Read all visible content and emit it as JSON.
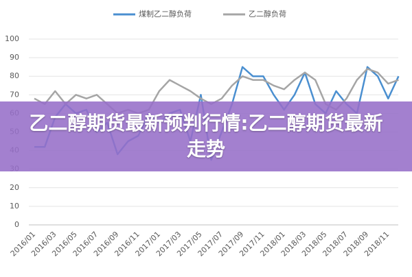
{
  "chart_data": {
    "type": "line",
    "categories": [
      "2016/01",
      null,
      "2016/03",
      null,
      "2016/05",
      null,
      "2016/07",
      null,
      "2016/09",
      null,
      "2016/11",
      null,
      "2017/01",
      null,
      "2017/03",
      null,
      "2017/05",
      null,
      "2017/07",
      null,
      "2017/09",
      null,
      "2017/11",
      null,
      "2018/01",
      null,
      "2018/03",
      null,
      "2018/05",
      null,
      "2018/07",
      null,
      "2018/09",
      null,
      "2018/11",
      null
    ],
    "series": [
      {
        "name": "煤制乙二醇负荷",
        "color": "#4a8fd0",
        "values": [
          42,
          42,
          58,
          65,
          60,
          62,
          50,
          55,
          38,
          45,
          48,
          60,
          55,
          60,
          62,
          45,
          70,
          35,
          50,
          65,
          85,
          80,
          80,
          70,
          62,
          70,
          82,
          65,
          60,
          72,
          65,
          60,
          85,
          80,
          68,
          80
        ]
      },
      {
        "name": "乙二醇负荷",
        "color": "#a5a5a5",
        "values": [
          68,
          65,
          72,
          65,
          70,
          68,
          70,
          65,
          60,
          62,
          60,
          62,
          72,
          78,
          75,
          72,
          68,
          65,
          68,
          75,
          80,
          78,
          78,
          75,
          73,
          78,
          82,
          78,
          65,
          62,
          68,
          78,
          84,
          82,
          76,
          78
        ]
      }
    ],
    "ylim": [
      0,
      100
    ],
    "yticks": [
      0,
      10,
      20,
      30,
      40,
      50,
      60,
      70,
      80,
      90,
      100
    ],
    "grid": true
  },
  "banner": {
    "title": "乙二醇期货最新预判行情:乙二醇期货最新走势"
  }
}
